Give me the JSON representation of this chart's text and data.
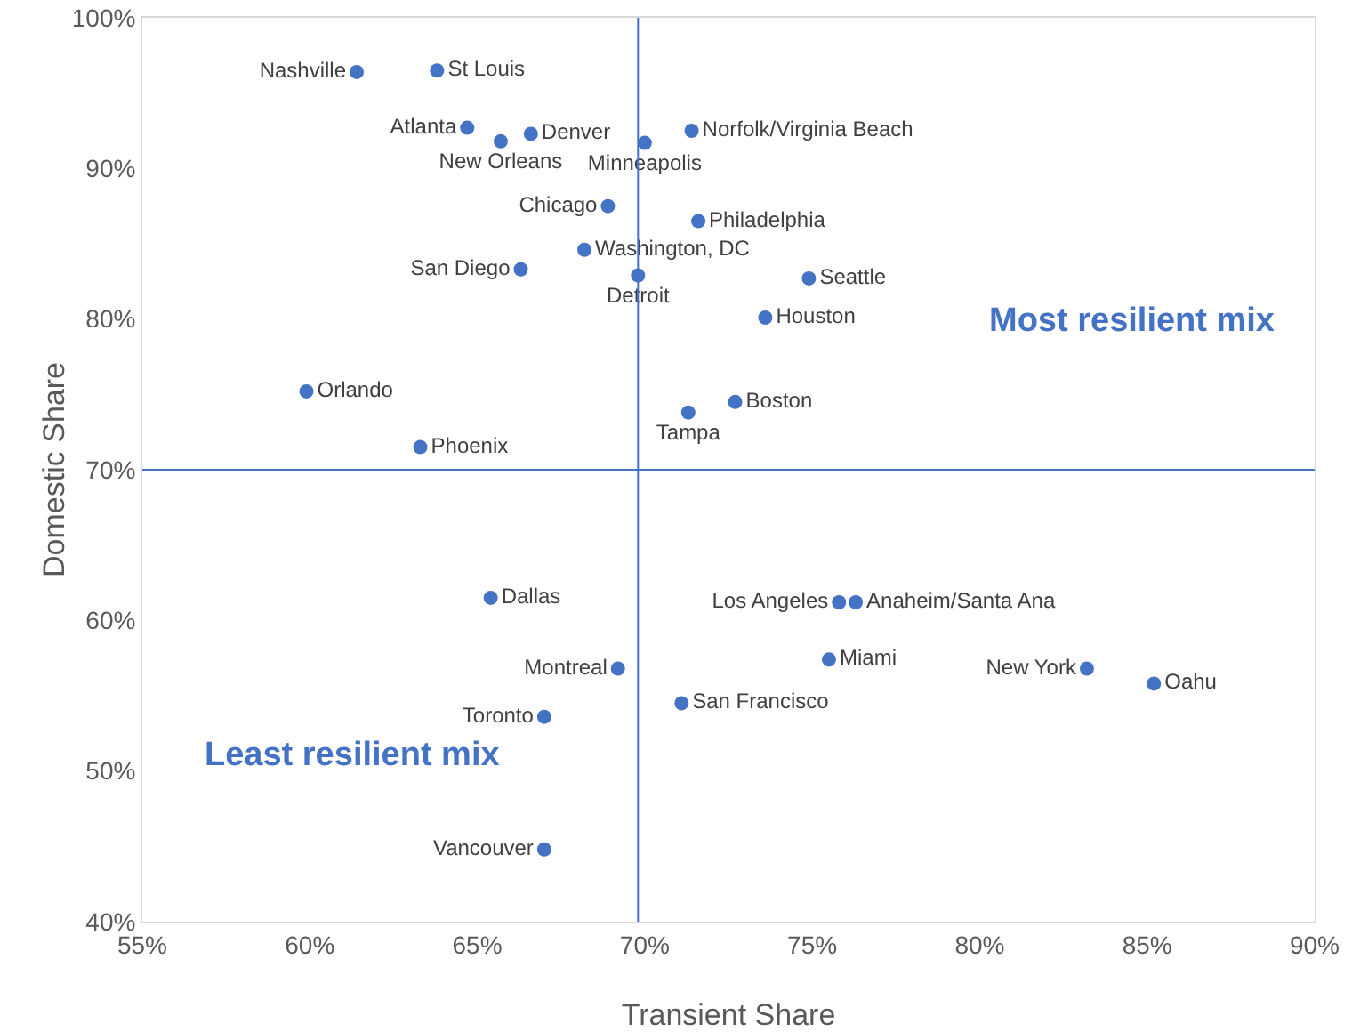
{
  "chart_data": {
    "type": "scatter",
    "xlabel": "Transient Share",
    "ylabel": "Domestic Share",
    "xlim": [
      55,
      90
    ],
    "xticks": [
      {
        "value": 55,
        "label": "55%"
      },
      {
        "value": 60,
        "label": "60%"
      },
      {
        "value": 65,
        "label": "65%"
      },
      {
        "value": 70,
        "label": "70%"
      },
      {
        "value": 75,
        "label": "75%"
      },
      {
        "value": 80,
        "label": "80%"
      },
      {
        "value": 85,
        "label": "85%"
      },
      {
        "value": 90,
        "label": "90%"
      }
    ],
    "ylim": [
      40,
      100
    ],
    "yticks": [
      {
        "value": 40,
        "label": "40%"
      },
      {
        "value": 50,
        "label": "50%"
      },
      {
        "value": 60,
        "label": "60%"
      },
      {
        "value": 70,
        "label": "70%"
      },
      {
        "value": 80,
        "label": "80%"
      },
      {
        "value": 90,
        "label": "90%"
      },
      {
        "value": 100,
        "label": "100%"
      }
    ],
    "grid": false,
    "legend": false,
    "marker": "circle",
    "ref_lines": [
      {
        "axis": "x",
        "value": 69.8,
        "color": "#4472c4"
      },
      {
        "axis": "y",
        "value": 70,
        "color": "#4472c4"
      }
    ],
    "annotations": [
      "Most resilient mix",
      "Least resilient mix"
    ],
    "series": [
      {
        "name": "Nashville",
        "color": "#4472c4",
        "x": [
          61.4
        ],
        "values": [
          96.4
        ]
      },
      {
        "name": "St Louis",
        "color": "#4472c4",
        "x": [
          63.8
        ],
        "values": [
          96.5
        ]
      },
      {
        "name": "Atlanta",
        "color": "#4472c4",
        "x": [
          64.7
        ],
        "values": [
          92.7
        ]
      },
      {
        "name": "New Orleans",
        "color": "#4472c4",
        "x": [
          65.7
        ],
        "values": [
          91.8
        ]
      },
      {
        "name": "Denver",
        "color": "#4472c4",
        "x": [
          66.6
        ],
        "values": [
          92.3
        ]
      },
      {
        "name": "Minneapolis",
        "color": "#4472c4",
        "x": [
          70.0
        ],
        "values": [
          91.7
        ]
      },
      {
        "name": "Norfolk/Virginia Beach",
        "color": "#4472c4",
        "x": [
          71.4
        ],
        "values": [
          92.5
        ]
      },
      {
        "name": "Chicago",
        "color": "#4472c4",
        "x": [
          68.9
        ],
        "values": [
          87.5
        ]
      },
      {
        "name": "Philadelphia",
        "color": "#4472c4",
        "x": [
          71.6
        ],
        "values": [
          86.5
        ]
      },
      {
        "name": "Washington, DC",
        "color": "#4472c4",
        "x": [
          68.2
        ],
        "values": [
          84.6
        ]
      },
      {
        "name": "San Diego",
        "color": "#4472c4",
        "x": [
          66.3
        ],
        "values": [
          83.3
        ]
      },
      {
        "name": "Detroit",
        "color": "#4472c4",
        "x": [
          69.8
        ],
        "values": [
          82.9
        ]
      },
      {
        "name": "Seattle",
        "color": "#4472c4",
        "x": [
          74.9
        ],
        "values": [
          82.7
        ]
      },
      {
        "name": "Houston",
        "color": "#4472c4",
        "x": [
          73.6
        ],
        "values": [
          80.1
        ]
      },
      {
        "name": "Orlando",
        "color": "#4472c4",
        "x": [
          59.9
        ],
        "values": [
          75.2
        ]
      },
      {
        "name": "Boston",
        "color": "#4472c4",
        "x": [
          72.7
        ],
        "values": [
          74.5
        ]
      },
      {
        "name": "Tampa",
        "color": "#4472c4",
        "x": [
          71.3
        ],
        "values": [
          73.8
        ]
      },
      {
        "name": "Phoenix",
        "color": "#4472c4",
        "x": [
          63.3
        ],
        "values": [
          71.5
        ]
      },
      {
        "name": "Dallas",
        "color": "#4472c4",
        "x": [
          65.4
        ],
        "values": [
          61.5
        ]
      },
      {
        "name": "Los Angeles",
        "color": "#4472c4",
        "x": [
          75.8
        ],
        "values": [
          61.2
        ]
      },
      {
        "name": "Anaheim/Santa Ana",
        "color": "#4472c4",
        "x": [
          76.3
        ],
        "values": [
          61.2
        ]
      },
      {
        "name": "Miami",
        "color": "#4472c4",
        "x": [
          75.5
        ],
        "values": [
          57.4
        ]
      },
      {
        "name": "Montreal",
        "color": "#4472c4",
        "x": [
          69.2
        ],
        "values": [
          56.8
        ]
      },
      {
        "name": "New York",
        "color": "#4472c4",
        "x": [
          83.2
        ],
        "values": [
          56.8
        ]
      },
      {
        "name": "Oahu",
        "color": "#4472c4",
        "x": [
          85.2
        ],
        "values": [
          55.8
        ]
      },
      {
        "name": "San Francisco",
        "color": "#4472c4",
        "x": [
          71.1
        ],
        "values": [
          54.5
        ]
      },
      {
        "name": "Toronto",
        "color": "#4472c4",
        "x": [
          67.0
        ],
        "values": [
          53.6
        ]
      },
      {
        "name": "Vancouver",
        "color": "#4472c4",
        "x": [
          67.0
        ],
        "values": [
          44.8
        ]
      }
    ]
  }
}
